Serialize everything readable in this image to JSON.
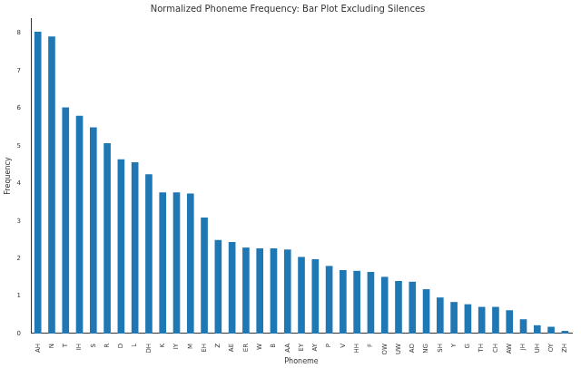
{
  "chart_data": {
    "type": "bar",
    "title": "Normalized Phoneme Frequency: Bar Plot Excluding Silences",
    "x_label": "Phoneme",
    "y_label": "Frequency",
    "categories": [
      "AH",
      "N",
      "T",
      "IH",
      "S",
      "R",
      "D",
      "L",
      "DH",
      "K",
      "IY",
      "M",
      "EH",
      "Z",
      "AE",
      "ER",
      "W",
      "B",
      "AA",
      "EY",
      "AY",
      "P",
      "V",
      "HH",
      "F",
      "OW",
      "UW",
      "AO",
      "NG",
      "SH",
      "Y",
      "G",
      "TH",
      "CH",
      "AW",
      "JH",
      "UH",
      "OY",
      "ZH"
    ],
    "values": [
      8.04,
      7.91,
      6.02,
      5.8,
      5.49,
      5.07,
      4.64,
      4.56,
      4.24,
      3.76,
      3.76,
      3.73,
      3.09,
      2.49,
      2.44,
      2.29,
      2.27,
      2.27,
      2.24,
      2.04,
      1.98,
      1.8,
      1.69,
      1.67,
      1.64,
      1.51,
      1.4,
      1.38,
      1.18,
      0.96,
      0.84,
      0.78,
      0.71,
      0.71,
      0.62,
      0.38,
      0.22,
      0.18,
      0.07
    ],
    "color": "#1f77b4",
    "ylim": [
      0,
      8.4
    ],
    "yticks": [
      0,
      1,
      2,
      3,
      4,
      5,
      6,
      7,
      8
    ],
    "grid": false
  }
}
